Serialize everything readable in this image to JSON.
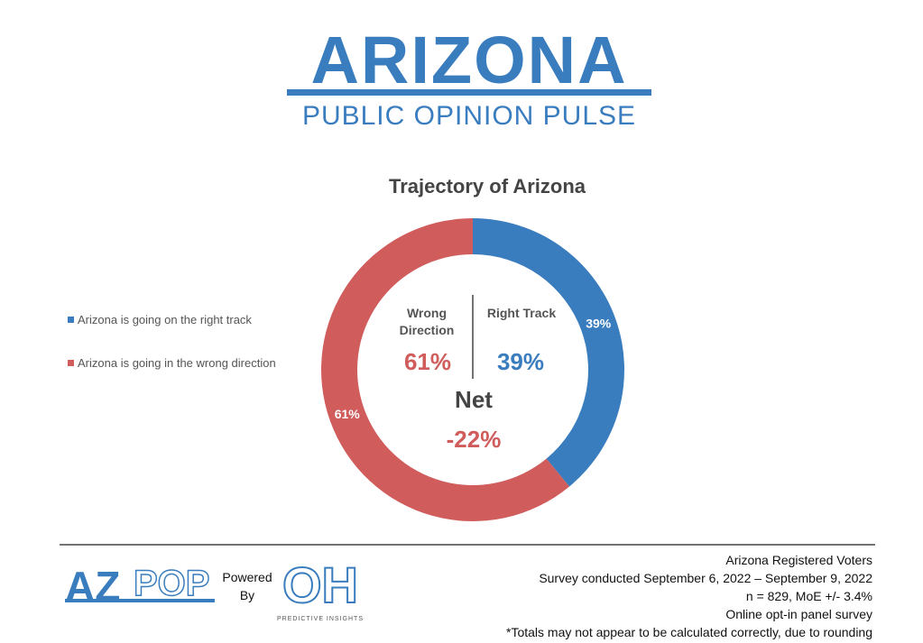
{
  "header": {
    "title": "ARIZONA",
    "subtitle": "PUBLIC OPINION PULSE"
  },
  "chart_data": {
    "type": "donut",
    "title": "Trajectory of Arizona",
    "categories": [
      "Arizona is going on the right track",
      "Arizona is going in the wrong direction"
    ],
    "values": [
      39,
      61
    ],
    "value_labels": [
      "39%",
      "61%"
    ],
    "colors": [
      "#3a7dbf",
      "#d05c5c"
    ],
    "center": {
      "left_label": "Wrong Direction",
      "right_label": "Right Track",
      "net_label": "Net",
      "net_value": "-22%"
    }
  },
  "footer": {
    "logo_left_a": "AZ",
    "logo_left_b": "POP",
    "powered": "Powered",
    "by": "By",
    "logo_right": "OH",
    "logo_right_sub": "PREDICTIVE INSIGHTS",
    "notes": [
      "Arizona Registered Voters",
      "Survey conducted September 6, 2022 – September 9, 2022",
      "n = 829, MoE +/- 3.4%",
      "Online opt-in panel survey",
      "*Totals may not appear to be calculated correctly, due to rounding"
    ]
  }
}
